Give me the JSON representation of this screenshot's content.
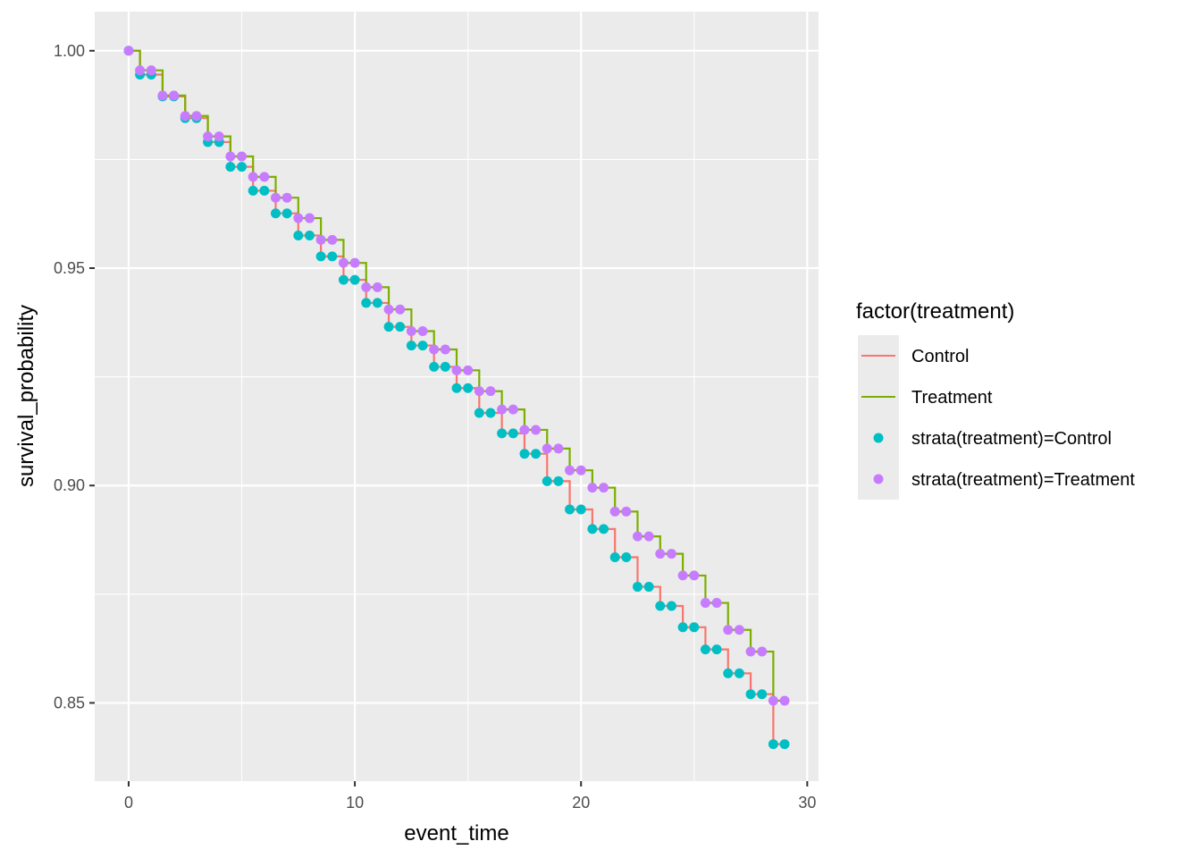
{
  "chart_data": {
    "type": "line",
    "xlabel": "event_time",
    "ylabel": "survival_probability",
    "xlim": [
      -1.5,
      30.5
    ],
    "ylim": [
      0.832,
      1.009
    ],
    "x_ticks": [
      0,
      10,
      20,
      30
    ],
    "x_tick_labels": [
      "0",
      "10",
      "20",
      "30"
    ],
    "y_ticks": [
      0.85,
      0.9,
      0.95,
      1.0
    ],
    "y_tick_labels": [
      "0.85",
      "0.90",
      "0.95",
      "1.00"
    ],
    "grid": true,
    "legend_position": "right",
    "legend": {
      "title": "factor(treatment)",
      "line_entries": [
        "Control",
        "Treatment"
      ],
      "point_entries": [
        "strata(treatment)=Control",
        "strata(treatment)=Treatment"
      ]
    },
    "series": [
      {
        "name": "Control",
        "kind": "step",
        "color": "#F8766D",
        "x": [
          0,
          0.5,
          1,
          1.5,
          2,
          2.5,
          3,
          3.5,
          4,
          4.5,
          5,
          5.5,
          6,
          6.5,
          7,
          7.5,
          8,
          8.5,
          9,
          9.5,
          10,
          10.5,
          11,
          11.5,
          12,
          12.5,
          13,
          13.5,
          14,
          14.5,
          15,
          15.5,
          16,
          16.5,
          17,
          17.5,
          18,
          18.5,
          19,
          19.5,
          20,
          20.5,
          21,
          21.5,
          22,
          22.5,
          23,
          23.5,
          24,
          24.5,
          25,
          25.5,
          26,
          26.5,
          27,
          27.5,
          28,
          28.5,
          29
        ],
        "y": [
          1.0,
          0.9945,
          0.9945,
          0.9895,
          0.9895,
          0.9845,
          0.9845,
          0.979,
          0.979,
          0.9733,
          0.9733,
          0.9678,
          0.9678,
          0.9626,
          0.9626,
          0.9575,
          0.9575,
          0.9527,
          0.9527,
          0.9473,
          0.9473,
          0.942,
          0.942,
          0.9365,
          0.9365,
          0.9322,
          0.9322,
          0.9273,
          0.9273,
          0.9224,
          0.9224,
          0.9167,
          0.9167,
          0.912,
          0.912,
          0.9073,
          0.9073,
          0.901,
          0.901,
          0.8945,
          0.8945,
          0.89,
          0.89,
          0.8835,
          0.8835,
          0.8767,
          0.8767,
          0.8723,
          0.8723,
          0.8674,
          0.8674,
          0.8623,
          0.8623,
          0.8568,
          0.8568,
          0.852,
          0.852,
          0.8405,
          0.8405
        ]
      },
      {
        "name": "Treatment",
        "kind": "step",
        "color": "#7CAE00",
        "x": [
          0,
          0.5,
          1,
          1.5,
          2,
          2.5,
          3,
          3.5,
          4,
          4.5,
          5,
          5.5,
          6,
          6.5,
          7,
          7.5,
          8,
          8.5,
          9,
          9.5,
          10,
          10.5,
          11,
          11.5,
          12,
          12.5,
          13,
          13.5,
          14,
          14.5,
          15,
          15.5,
          16,
          16.5,
          17,
          17.5,
          18,
          18.5,
          19,
          19.5,
          20,
          20.5,
          21,
          21.5,
          22,
          22.5,
          23,
          23.5,
          24,
          24.5,
          25,
          25.5,
          26,
          26.5,
          27,
          27.5,
          28,
          28.5,
          29
        ],
        "y": [
          1.0,
          0.9955,
          0.9955,
          0.9897,
          0.9897,
          0.985,
          0.985,
          0.9803,
          0.9803,
          0.9757,
          0.9757,
          0.971,
          0.971,
          0.9662,
          0.9662,
          0.9615,
          0.9615,
          0.9565,
          0.9565,
          0.9512,
          0.9512,
          0.9456,
          0.9456,
          0.9405,
          0.9405,
          0.9355,
          0.9355,
          0.9313,
          0.9313,
          0.9265,
          0.9265,
          0.9217,
          0.9217,
          0.9175,
          0.9175,
          0.9128,
          0.9128,
          0.9085,
          0.9085,
          0.9035,
          0.9035,
          0.8995,
          0.8995,
          0.894,
          0.894,
          0.8883,
          0.8883,
          0.8843,
          0.8843,
          0.8793,
          0.8793,
          0.873,
          0.873,
          0.8668,
          0.8668,
          0.8618,
          0.8618,
          0.8505,
          0.8505
        ]
      },
      {
        "name": "strata(treatment)=Control",
        "kind": "points",
        "color": "#00BFC4",
        "x": [
          0,
          0.5,
          1,
          1.5,
          2,
          2.5,
          3,
          3.5,
          4,
          4.5,
          5,
          5.5,
          6,
          6.5,
          7,
          7.5,
          8,
          8.5,
          9,
          9.5,
          10,
          10.5,
          11,
          11.5,
          12,
          12.5,
          13,
          13.5,
          14,
          14.5,
          15,
          15.5,
          16,
          16.5,
          17,
          17.5,
          18,
          18.5,
          19,
          19.5,
          20,
          20.5,
          21,
          21.5,
          22,
          22.5,
          23,
          23.5,
          24,
          24.5,
          25,
          25.5,
          26,
          26.5,
          27,
          27.5,
          28,
          28.5,
          29
        ],
        "y": [
          1.0,
          0.9945,
          0.9945,
          0.9895,
          0.9895,
          0.9845,
          0.9845,
          0.979,
          0.979,
          0.9733,
          0.9733,
          0.9678,
          0.9678,
          0.9626,
          0.9626,
          0.9575,
          0.9575,
          0.9527,
          0.9527,
          0.9473,
          0.9473,
          0.942,
          0.942,
          0.9365,
          0.9365,
          0.9322,
          0.9322,
          0.9273,
          0.9273,
          0.9224,
          0.9224,
          0.9167,
          0.9167,
          0.912,
          0.912,
          0.9073,
          0.9073,
          0.901,
          0.901,
          0.8945,
          0.8945,
          0.89,
          0.89,
          0.8835,
          0.8835,
          0.8767,
          0.8767,
          0.8723,
          0.8723,
          0.8674,
          0.8674,
          0.8623,
          0.8623,
          0.8568,
          0.8568,
          0.852,
          0.852,
          0.8405,
          0.8405
        ]
      },
      {
        "name": "strata(treatment)=Treatment",
        "kind": "points",
        "color": "#C77CFF",
        "x": [
          0,
          0.5,
          1,
          1.5,
          2,
          2.5,
          3,
          3.5,
          4,
          4.5,
          5,
          5.5,
          6,
          6.5,
          7,
          7.5,
          8,
          8.5,
          9,
          9.5,
          10,
          10.5,
          11,
          11.5,
          12,
          12.5,
          13,
          13.5,
          14,
          14.5,
          15,
          15.5,
          16,
          16.5,
          17,
          17.5,
          18,
          18.5,
          19,
          19.5,
          20,
          20.5,
          21,
          21.5,
          22,
          22.5,
          23,
          23.5,
          24,
          24.5,
          25,
          25.5,
          26,
          26.5,
          27,
          27.5,
          28,
          28.5,
          29
        ],
        "y": [
          1.0,
          0.9955,
          0.9955,
          0.9897,
          0.9897,
          0.985,
          0.985,
          0.9803,
          0.9803,
          0.9757,
          0.9757,
          0.971,
          0.971,
          0.9662,
          0.9662,
          0.9615,
          0.9615,
          0.9565,
          0.9565,
          0.9512,
          0.9512,
          0.9456,
          0.9456,
          0.9405,
          0.9405,
          0.9355,
          0.9355,
          0.9313,
          0.9313,
          0.9265,
          0.9265,
          0.9217,
          0.9217,
          0.9175,
          0.9175,
          0.9128,
          0.9128,
          0.9085,
          0.9085,
          0.9035,
          0.9035,
          0.8995,
          0.8995,
          0.894,
          0.894,
          0.8883,
          0.8883,
          0.8843,
          0.8843,
          0.8793,
          0.8793,
          0.873,
          0.873,
          0.8668,
          0.8668,
          0.8618,
          0.8618,
          0.8505,
          0.8505
        ]
      }
    ]
  }
}
